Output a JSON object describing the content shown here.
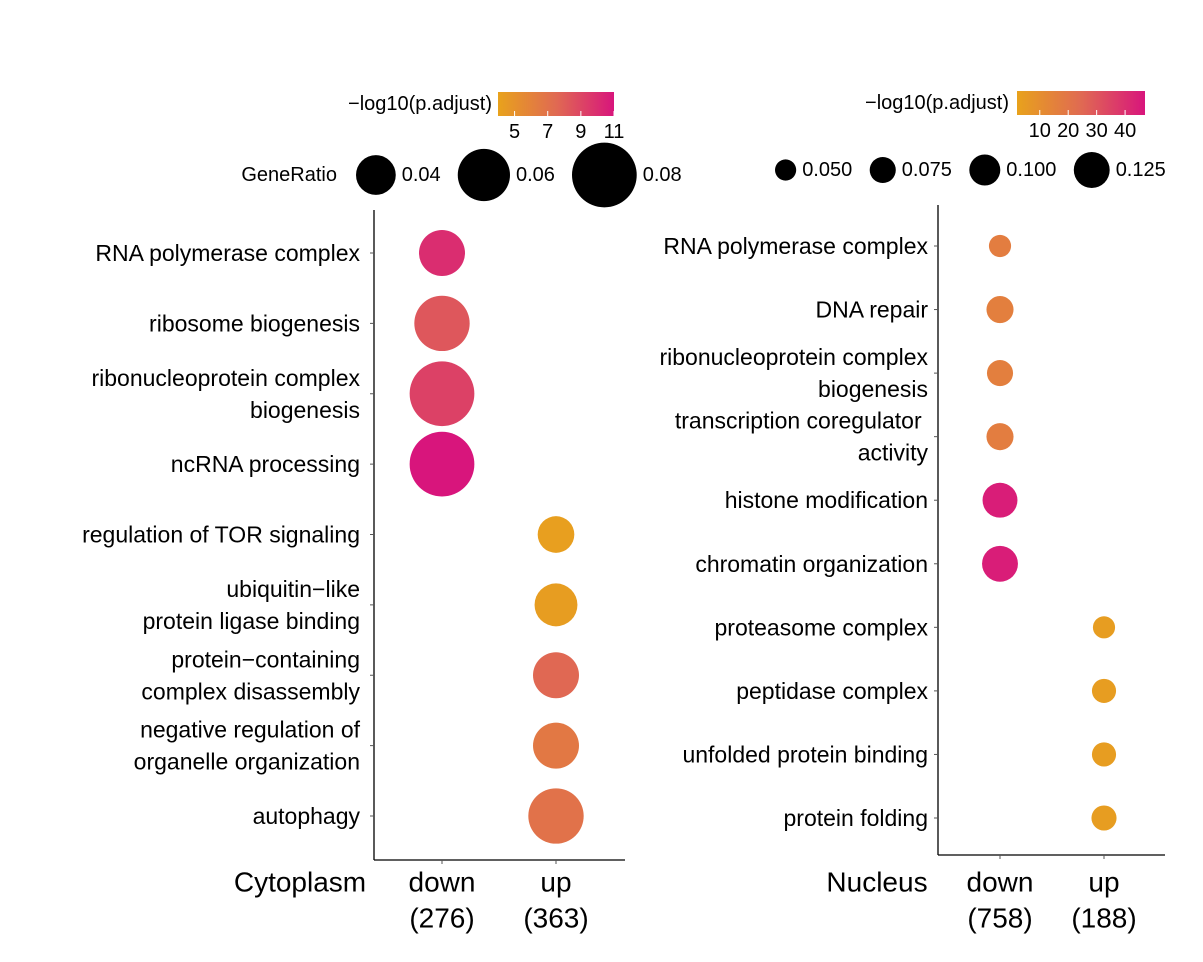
{
  "chart_data": [
    {
      "type": "scatter",
      "panel": "Cytoplasm",
      "xlabel": "Cytoplasm",
      "categories": [
        "down\n(276)",
        "up\n(363)"
      ],
      "y_terms": [
        "RNA polymerase complex",
        "ribosome biogenesis",
        "ribonucleoprotein complex\nbiogenesis",
        "ncRNA processing",
        "regulation of TOR signaling",
        "ubiquitin−like\nprotein ligase binding",
        "protein−containing\ncomplex disassembly",
        "negative regulation of\norganelle organization",
        "autophagy"
      ],
      "points": [
        {
          "category": "down\n(276)",
          "term": "RNA polymerase complex",
          "gene_ratio": 0.05,
          "neg_log10_padj": 10.0
        },
        {
          "category": "down\n(276)",
          "term": "ribosome biogenesis",
          "gene_ratio": 0.065,
          "neg_log10_padj": 8.3
        },
        {
          "category": "down\n(276)",
          "term": "ribonucleoprotein complex\nbiogenesis",
          "gene_ratio": 0.08,
          "neg_log10_padj": 9.2
        },
        {
          "category": "down\n(276)",
          "term": "ncRNA processing",
          "gene_ratio": 0.08,
          "neg_log10_padj": 11.0
        },
        {
          "category": "up\n(363)",
          "term": "regulation of TOR signaling",
          "gene_ratio": 0.035,
          "neg_log10_padj": 4.2
        },
        {
          "category": "up\n(363)",
          "term": "ubiquitin−like\nprotein ligase binding",
          "gene_ratio": 0.045,
          "neg_log10_padj": 4.3
        },
        {
          "category": "up\n(363)",
          "term": "protein−containing\ncomplex disassembly",
          "gene_ratio": 0.05,
          "neg_log10_padj": 7.6
        },
        {
          "category": "up\n(363)",
          "term": "negative regulation of\norganelle organization",
          "gene_ratio": 0.05,
          "neg_log10_padj": 6.6
        },
        {
          "category": "up\n(363)",
          "term": "autophagy",
          "gene_ratio": 0.065,
          "neg_log10_padj": 7.0
        }
      ],
      "color_legend": {
        "title": "−log10(p.adjust)",
        "range": [
          4,
          11
        ],
        "breaks": [
          5,
          7,
          9,
          11
        ],
        "break_labels": [
          "5",
          "7",
          "9",
          "11"
        ],
        "low_color": "#e8a21c",
        "mid_color": "#e06a52",
        "high_color": "#d8157c"
      },
      "size_legend": {
        "title": "GeneRatio",
        "breaks": [
          0.04,
          0.06,
          0.08
        ],
        "break_labels": [
          "0.04",
          "0.06",
          "0.08"
        ]
      }
    },
    {
      "type": "scatter",
      "panel": "Nucleus",
      "xlabel": "Nucleus",
      "categories": [
        "down\n(758)",
        "up\n(188)"
      ],
      "y_terms": [
        "RNA polymerase complex",
        "DNA repair",
        "ribonucleoprotein complex\nbiogenesis",
        "transcription coregulator \nactivity",
        "histone modification",
        "chromatin organization",
        "proteasome complex",
        "peptidase complex",
        "unfolded protein binding",
        "protein folding"
      ],
      "points": [
        {
          "category": "down\n(758)",
          "term": "RNA polymerase complex",
          "gene_ratio": 0.055,
          "neg_log10_padj": 17
        },
        {
          "category": "down\n(758)",
          "term": "DNA repair",
          "gene_ratio": 0.08,
          "neg_log10_padj": 16
        },
        {
          "category": "down\n(758)",
          "term": "ribonucleoprotein complex\nbiogenesis",
          "gene_ratio": 0.075,
          "neg_log10_padj": 16
        },
        {
          "category": "down\n(758)",
          "term": "transcription coregulator \nactivity",
          "gene_ratio": 0.08,
          "neg_log10_padj": 17
        },
        {
          "category": "down\n(758)",
          "term": "histone modification",
          "gene_ratio": 0.12,
          "neg_log10_padj": 45
        },
        {
          "category": "down\n(758)",
          "term": "chromatin organization",
          "gene_ratio": 0.125,
          "neg_log10_padj": 45
        },
        {
          "category": "up\n(188)",
          "term": "proteasome complex",
          "gene_ratio": 0.055,
          "neg_log10_padj": 4
        },
        {
          "category": "up\n(188)",
          "term": "peptidase complex",
          "gene_ratio": 0.065,
          "neg_log10_padj": 4
        },
        {
          "category": "up\n(188)",
          "term": "unfolded protein binding",
          "gene_ratio": 0.065,
          "neg_log10_padj": 4
        },
        {
          "category": "up\n(188)",
          "term": "protein folding",
          "gene_ratio": 0.07,
          "neg_log10_padj": 4
        }
      ],
      "color_legend": {
        "title": "−log10(p.adjust)",
        "range": [
          2,
          47
        ],
        "breaks": [
          10,
          20,
          30,
          40
        ],
        "break_labels": [
          "10",
          "20",
          "30",
          "40"
        ],
        "low_color": "#e8a21c",
        "mid_color": "#e06a52",
        "high_color": "#d8157c"
      },
      "size_legend": {
        "title": "",
        "breaks": [
          0.05,
          0.075,
          0.1,
          0.125
        ],
        "break_labels": [
          "0.050",
          "0.075",
          "0.100",
          "0.125"
        ]
      }
    }
  ]
}
